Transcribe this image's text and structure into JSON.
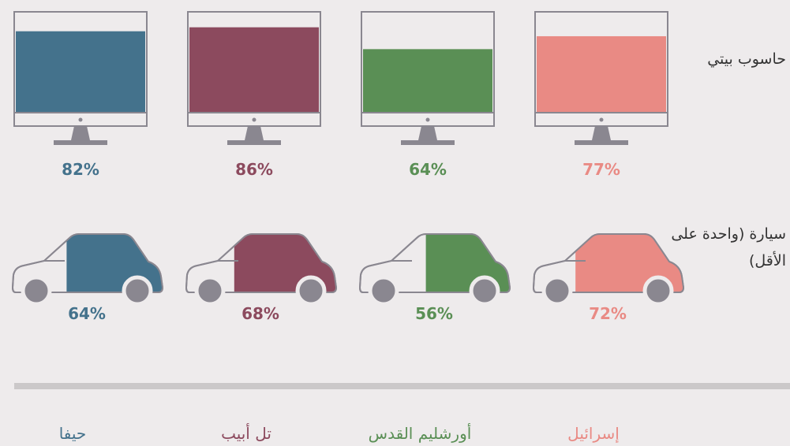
{
  "chart_data": {
    "type": "pictogram",
    "categories": [
      "حاسوب بيتي",
      "سيارة (واحدة على الأقل)"
    ],
    "series": [
      {
        "name": "حيفا",
        "color": "#44728c",
        "values": [
          82,
          64
        ],
        "value_labels": [
          "82%",
          "64%"
        ]
      },
      {
        "name": "تل أبيب",
        "color": "#8c4a5e",
        "values": [
          86,
          68
        ],
        "value_labels": [
          "86%",
          "68%"
        ]
      },
      {
        "name": "أورشليم القدس",
        "color": "#5a8f55",
        "values": [
          64,
          56
        ],
        "value_labels": [
          "64%",
          "56%"
        ]
      },
      {
        "name": "إسرائيل",
        "color": "#e98a84",
        "values": [
          77,
          72
        ],
        "value_labels": [
          "77%",
          "72%"
        ]
      }
    ]
  }
}
